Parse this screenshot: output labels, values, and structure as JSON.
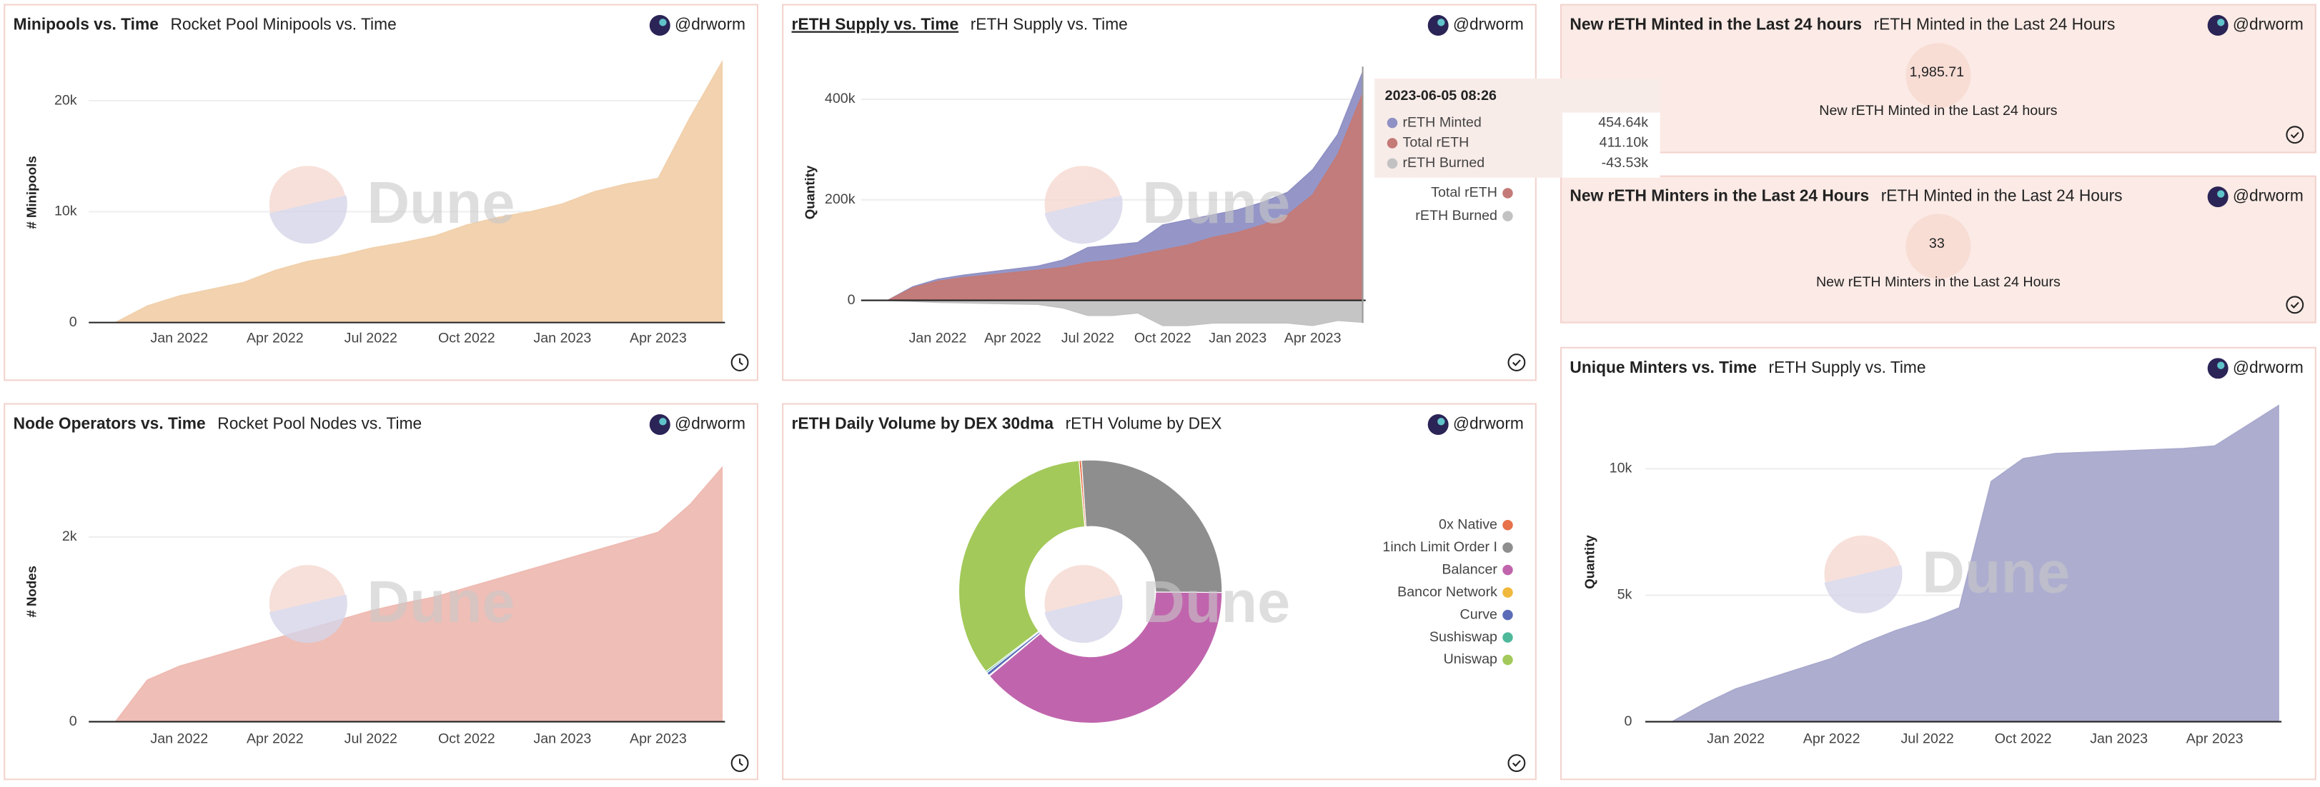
{
  "author": "@drworm",
  "watermark": "Dune",
  "counters": [
    {
      "title": "New rETH Minted in the Last 24 hours",
      "subtitle": "rETH Minted in the Last 24 Hours",
      "value": 1985.71,
      "value_label": "1,985.71",
      "caption": "New rETH Minted in the Last 24 hours"
    },
    {
      "title": "New rETH Minters in the Last 24 Hours",
      "subtitle": "rETH Minted in the Last 24 Hours",
      "value": 33,
      "caption": "New rETH Minters in the Last 24 Hours"
    }
  ],
  "chart_data": [
    {
      "type": "area",
      "title": "Minipools vs. Time",
      "subtitle": "Rocket Pool Minipools vs. Time",
      "y_label": "# Minipools",
      "categories": [
        null,
        null,
        "Jan 2022",
        null,
        null,
        "Apr 2022",
        null,
        null,
        "Jul 2022",
        null,
        null,
        "Oct 2022",
        null,
        null,
        "Jan 2023",
        null,
        null,
        "Apr 2023",
        null,
        null
      ],
      "values": [
        0,
        1500,
        2400,
        3000,
        3600,
        4700,
        5500,
        6000,
        6700,
        7200,
        7800,
        8800,
        9500,
        10000,
        10700,
        11800,
        12500,
        13000,
        18500,
        23500
      ],
      "color": "#f1d0ab",
      "ylim": [
        0,
        24000
      ],
      "yticks": [
        0,
        {
          "value": 10000,
          "label": "10k"
        },
        {
          "value": 20000,
          "label": "20k"
        }
      ],
      "grid": true
    },
    {
      "type": "area",
      "title": "rETH Supply vs. Time",
      "subtitle": "rETH Supply vs. Time",
      "y_label": "Quantity",
      "categories": [
        null,
        null,
        "Jan 2022",
        null,
        null,
        "Apr 2022",
        null,
        null,
        "Jul 2022",
        null,
        null,
        "Oct 2022",
        null,
        null,
        "Jan 2023",
        null,
        null,
        "Apr 2023",
        null,
        null
      ],
      "series": [
        {
          "name": "rETH Minted",
          "color": "#8f90c4",
          "values": [
            0,
            27000,
            42000,
            50000,
            56000,
            62000,
            68000,
            80000,
            105000,
            110000,
            115000,
            150000,
            160000,
            170000,
            180000,
            195000,
            215000,
            260000,
            330000,
            454640
          ]
        },
        {
          "name": "Total rETH",
          "color": "#c47a77",
          "values": [
            0,
            25000,
            38000,
            45000,
            50000,
            55000,
            60000,
            65000,
            75000,
            80000,
            90000,
            100000,
            110000,
            125000,
            135000,
            150000,
            170000,
            210000,
            290000,
            411100
          ]
        },
        {
          "name": "rETH Burned",
          "color": "#c2c2c2",
          "values": [
            0,
            -2000,
            -4000,
            -5000,
            -6000,
            -7000,
            -8000,
            -15000,
            -30000,
            -30000,
            -25000,
            -50000,
            -50000,
            -45000,
            -45000,
            -45000,
            -45000,
            -50000,
            -40000,
            -43530
          ]
        }
      ],
      "ylim": [
        -45000,
        465000
      ],
      "yticks": [
        0,
        {
          "value": 200000,
          "label": "200k"
        },
        {
          "value": 400000,
          "label": "400k"
        }
      ],
      "grid": true,
      "tooltip": {
        "x": "2023-06-05 08:26",
        "values": [
          454640,
          411100,
          -43530
        ],
        "value_labels": [
          "454.64k",
          "411.10k",
          "-43.53k"
        ]
      }
    },
    {
      "type": "area",
      "title": "Node Operators vs. Time",
      "subtitle": "Rocket Pool Nodes vs. Time",
      "y_label": "# Nodes",
      "categories": [
        null,
        null,
        "Jan 2022",
        null,
        null,
        "Apr 2022",
        null,
        null,
        "Jul 2022",
        null,
        null,
        "Oct 2022",
        null,
        null,
        "Jan 2023",
        null,
        null,
        "Apr 2023",
        null,
        null
      ],
      "values": [
        0,
        450,
        600,
        700,
        800,
        900,
        1000,
        1100,
        1200,
        1280,
        1350,
        1450,
        1550,
        1650,
        1750,
        1850,
        1950,
        2050,
        2350,
        2750
      ],
      "color": "#eebab2",
      "ylim": [
        0,
        2900
      ],
      "yticks": [
        0,
        {
          "value": 2000,
          "label": "2k"
        }
      ],
      "grid": true
    },
    {
      "type": "pie",
      "title": "rETH Daily Volume by DEX 30dma",
      "subtitle": "rETH Volume by DEX",
      "categories": [
        "0x Native",
        "1inch Limit Order I",
        "Balancer",
        "Bancor Network",
        "Curve",
        "Sushiswap",
        "Uniswap"
      ],
      "values": [
        0.3,
        26.2,
        38.8,
        0.1,
        0.4,
        0.2,
        34.0
      ],
      "colors": [
        "#e6714a",
        "#8e8e8e",
        "#c065ad",
        "#f0b83c",
        "#5a6cb8",
        "#4fb89b",
        "#a3c95a"
      ]
    },
    {
      "type": "area",
      "title": "Unique Minters vs. Time",
      "subtitle": "rETH Supply vs. Time",
      "y_label": "Quantity",
      "categories": [
        null,
        null,
        "Jan 2022",
        null,
        null,
        "Apr 2022",
        null,
        null,
        "Jul 2022",
        null,
        null,
        "Oct 2022",
        null,
        null,
        "Jan 2023",
        null,
        null,
        "Apr 2023",
        null,
        null
      ],
      "values": [
        0,
        700,
        1300,
        1700,
        2100,
        2500,
        3100,
        3600,
        4000,
        4500,
        9500,
        10400,
        10600,
        10650,
        10700,
        10750,
        10800,
        10900,
        11700,
        12500
      ],
      "color": "#a9a9cd",
      "ylim": [
        0,
        12800
      ],
      "yticks": [
        0,
        {
          "value": 5000,
          "label": "5k"
        },
        {
          "value": 10000,
          "label": "10k"
        }
      ],
      "grid": true
    }
  ]
}
